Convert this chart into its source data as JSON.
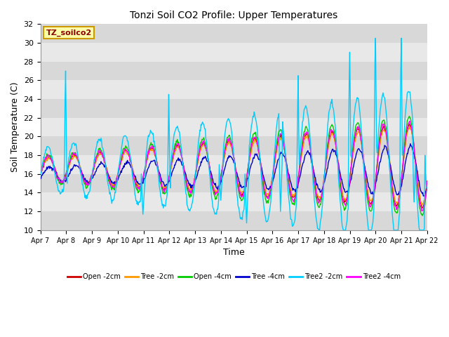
{
  "title": "Tonzi Soil CO2 Profile: Upper Temperatures",
  "xlabel": "Time",
  "ylabel": "Soil Temperature (C)",
  "ylim": [
    10,
    32
  ],
  "yticks": [
    10,
    12,
    14,
    16,
    18,
    20,
    22,
    24,
    26,
    28,
    30,
    32
  ],
  "xlim": [
    0,
    15
  ],
  "xtick_labels": [
    "Apr 7",
    "Apr 8",
    "Apr 9",
    "Apr 10",
    "Apr 11",
    "Apr 12",
    "Apr 13",
    "Apr 14",
    "Apr 15",
    "Apr 16",
    "Apr 17",
    "Apr 18",
    "Apr 19",
    "Apr 20",
    "Apr 21",
    "Apr 22"
  ],
  "watermark_text": "TZ_soilco2",
  "fig_bg": "#ffffff",
  "plot_bg": "#d8d8d8",
  "band_colors": [
    "#d8d8d8",
    "#e8e8e8"
  ],
  "series_colors": [
    "#cc0000",
    "#ff9900",
    "#00cc00",
    "#0000cc",
    "#00ccff",
    "#ff00ff"
  ],
  "series_labels": [
    "Open -2cm",
    "Tree -2cm",
    "Open -4cm",
    "Tree -4cm",
    "Tree2 -2cm",
    "Tree2 -4cm"
  ],
  "grid_color": "#ffffff",
  "n_points": 721
}
